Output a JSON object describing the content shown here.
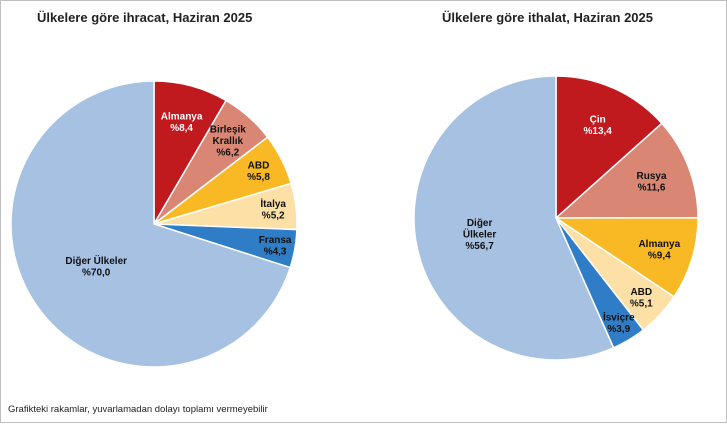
{
  "chart_data": [
    {
      "type": "pie",
      "title": "Ülkelere göre ihracat, Haziran 2025",
      "slices": [
        {
          "label": [
            "Almanya"
          ],
          "value_label": "%8,4",
          "value": 8.4,
          "color": "#C0191E",
          "text_color": "#ffffff"
        },
        {
          "label": [
            "Birleşik",
            "Krallık"
          ],
          "value_label": "%6,2",
          "value": 6.2,
          "color": "#D98774",
          "text_color": "#111111"
        },
        {
          "label": [
            "ABD"
          ],
          "value_label": "%5,8",
          "value": 5.8,
          "color": "#F8B925",
          "text_color": "#111111"
        },
        {
          "label": [
            "İtalya"
          ],
          "value_label": "%5,2",
          "value": 5.2,
          "color": "#FCE0A6",
          "text_color": "#111111"
        },
        {
          "label": [
            "Fransa"
          ],
          "value_label": "%4,3",
          "value": 4.3,
          "color": "#2F7DC6",
          "text_color": "#111111"
        },
        {
          "label": [
            "Diğer Ülkeler"
          ],
          "value_label": "%70,0",
          "value": 70.0,
          "color": "#A7C1E3",
          "text_color": "#111111"
        }
      ]
    },
    {
      "type": "pie",
      "title": "Ülkelere göre ithalat, Haziran 2025",
      "slices": [
        {
          "label": [
            "Çin"
          ],
          "value_label": "%13,4",
          "value": 13.4,
          "color": "#C0191E",
          "text_color": "#ffffff"
        },
        {
          "label": [
            "Rusya"
          ],
          "value_label": "%11,6",
          "value": 11.6,
          "color": "#D98774",
          "text_color": "#111111"
        },
        {
          "label": [
            "Almanya"
          ],
          "value_label": "%9,4",
          "value": 9.4,
          "color": "#F8B925",
          "text_color": "#111111"
        },
        {
          "label": [
            "ABD"
          ],
          "value_label": "%5,1",
          "value": 5.1,
          "color": "#FCE0A6",
          "text_color": "#111111"
        },
        {
          "label": [
            "İsviçre"
          ],
          "value_label": "%3,9",
          "value": 3.9,
          "color": "#2F7DC6",
          "text_color": "#111111"
        },
        {
          "label": [
            "Diğer",
            "Ülkeler"
          ],
          "value_label": "%56,7",
          "value": 56.7,
          "color": "#A7C1E3",
          "text_color": "#111111"
        }
      ]
    }
  ],
  "footnote": "Grafikteki rakamlar, yuvarlamadan dolayı toplamı vermeyebilir"
}
